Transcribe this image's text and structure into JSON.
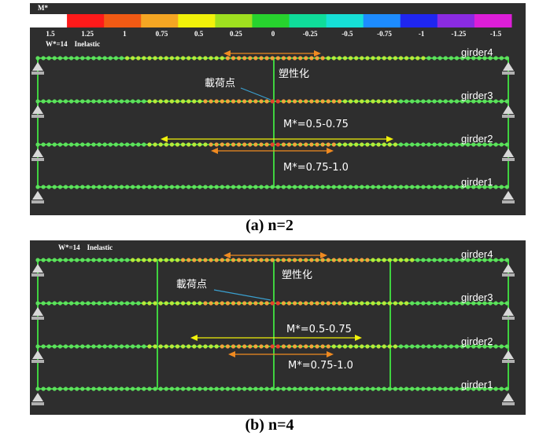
{
  "colors": {
    "background": "#2e2e2e",
    "member": "#3fd23f",
    "node_green": "#5de05d",
    "node_yellowgreen": "#b8e83a",
    "node_orange": "#f2a33a",
    "node_red": "#e8432a",
    "arrow_orange": "#f08a20",
    "arrow_yellow": "#f2f20a",
    "callout": "#3aa0d0",
    "support": "#d8d8d8",
    "text": "#ffffff"
  },
  "legend": {
    "title": "M*",
    "ticks": [
      "1.5",
      "1.25",
      "1",
      "0.75",
      "0.5",
      "0.25",
      "0",
      "-0.25",
      "-0.5",
      "-0.75",
      "-1",
      "-1.25",
      "-1.5"
    ],
    "swatches": [
      "#ffffff",
      "#ff1a1a",
      "#f25a14",
      "#f5a623",
      "#f2f20a",
      "#9fe01f",
      "#27d32e",
      "#0fdd9a",
      "#16e0d6",
      "#1d8cff",
      "#1f26f0",
      "#8a2be2",
      "#dd1ed8"
    ]
  },
  "panel_a": {
    "info": "W*=14    Inelastic",
    "load_point_label": "載荷点",
    "plastic_label": "塑性化",
    "range_upper": "M*=0.5-0.75",
    "range_lower": "M*=0.75-1.0",
    "girders": [
      "girder4",
      "girder3",
      "girder2",
      "girder1"
    ],
    "caption": "(a) n=2"
  },
  "panel_b": {
    "info": "W*=14    Inelastic",
    "load_point_label": "載荷点",
    "plastic_label": "塑性化",
    "range_upper": "M*=0.5-0.75",
    "range_lower": "M*=0.75-1.0",
    "girders": [
      "girder4",
      "girder3",
      "girder2",
      "girder1"
    ],
    "caption": "(b) n=4"
  }
}
